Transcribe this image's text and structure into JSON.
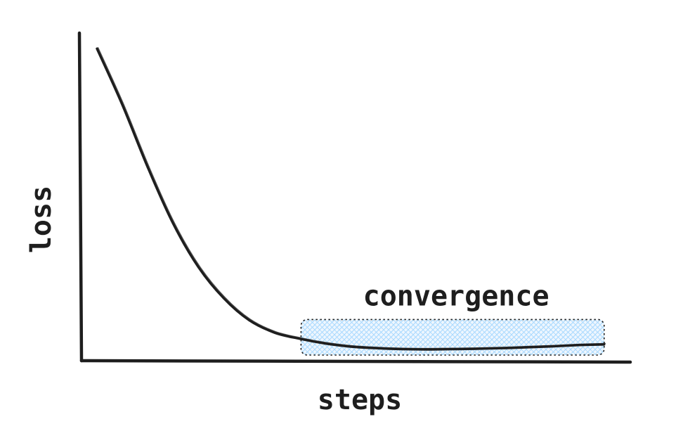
{
  "chart_data": {
    "type": "line",
    "title": "",
    "xlabel": "steps",
    "ylabel": "loss",
    "grid": false,
    "x": [
      0,
      0.05,
      0.1,
      0.15,
      0.2,
      0.25,
      0.3,
      0.35,
      0.4,
      0.45,
      0.5,
      0.55,
      0.6,
      0.65,
      0.7,
      0.75,
      0.8,
      0.85,
      0.9,
      0.95,
      1
    ],
    "series": [
      {
        "values": [
          1.0,
          0.82,
          0.62,
          0.44,
          0.3,
          0.2,
          0.13,
          0.09,
          0.07,
          0.055,
          0.045,
          0.04,
          0.037,
          0.036,
          0.037,
          0.038,
          0.04,
          0.043,
          0.046,
          0.05,
          0.052
        ]
      }
    ],
    "xlim": [
      0,
      1.05
    ],
    "ylim": [
      0,
      1.05
    ],
    "annotations": [
      {
        "text": "convergence",
        "x_range": [
          0.42,
          1.0
        ],
        "y_range": [
          0.0,
          0.15
        ],
        "fill_color": "#a5d8ff"
      }
    ]
  }
}
